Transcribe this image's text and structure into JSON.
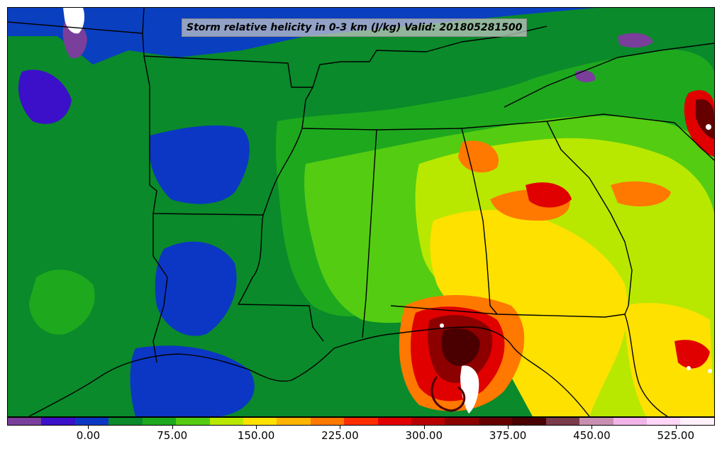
{
  "title": "Storm relative helicity in 0-3 km (J/kg) Valid: 201805281500",
  "colorbar": {
    "colors": [
      "#7a3f9a",
      "#3b10c8",
      "#0c37c4",
      "#0a8a2a",
      "#1ea81e",
      "#54cc12",
      "#b8e800",
      "#ffe100",
      "#ffb400",
      "#ff7800",
      "#ff2d00",
      "#e00000",
      "#b80000",
      "#8c0000",
      "#660000",
      "#4a0000",
      "#7a3b4a",
      "#c98fb0",
      "#f2b4e8",
      "#ffd6f7",
      "#fff0fc"
    ],
    "ticks": [
      "0.00",
      "75.00",
      "150.00",
      "225.00",
      "300.00",
      "375.00",
      "450.00",
      "525.00"
    ]
  },
  "map": {
    "field_colors": {
      "background": "#0a3fc0",
      "green_dark": "#0a8a2a",
      "green": "#1ea81e",
      "green_light": "#54cc12",
      "yellow_green": "#b8e800",
      "yellow": "#ffe100",
      "orange": "#ff7800",
      "red": "#e00000",
      "dark_red": "#8c0000",
      "maroon": "#4a0000",
      "purple": "#7a3f9a",
      "white": "#ffffff"
    }
  }
}
